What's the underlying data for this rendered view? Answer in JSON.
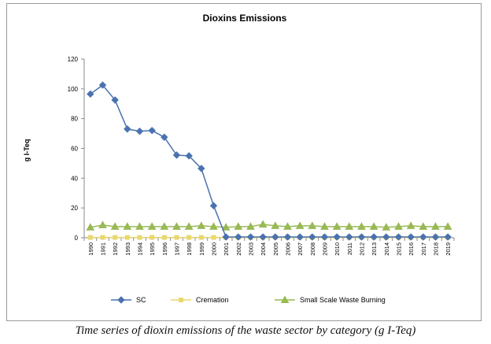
{
  "chart_data": {
    "type": "line",
    "title": "Dioxins Emissions",
    "xlabel": "",
    "ylabel": "g I-Teq",
    "ylim": [
      0,
      120
    ],
    "yticks": [
      0,
      20,
      40,
      60,
      80,
      100,
      120
    ],
    "grid": false,
    "legend": "bottom",
    "categories": [
      "1990",
      "1991",
      "1992",
      "1993",
      "1994",
      "1995",
      "1996",
      "1997",
      "1998",
      "1999",
      "2000",
      "2001",
      "2002",
      "2003",
      "2004",
      "2005",
      "2006",
      "2007",
      "2008",
      "2009",
      "2010",
      "2011",
      "2012",
      "2013",
      "2014",
      "2015",
      "2016",
      "2017",
      "2018",
      "2019"
    ],
    "series": [
      {
        "name": "SC",
        "color": "#4a72b0",
        "marker": "diamond",
        "values": [
          96.5,
          102.5,
          92.5,
          73,
          71.5,
          72,
          67.5,
          55.5,
          55,
          46.5,
          21.5,
          0.5,
          0.5,
          0.5,
          0.5,
          0.5,
          0.5,
          0.5,
          0.5,
          0.5,
          0.5,
          0.5,
          0.5,
          0.5,
          0.5,
          0.5,
          0.5,
          0.5,
          0.5,
          0.5
        ]
      },
      {
        "name": "Cremation",
        "color": "#e8d870",
        "marker": "square",
        "values": [
          0.2,
          0.2,
          0.2,
          0.2,
          0.2,
          0.2,
          0.2,
          0.2,
          0.2,
          0.2,
          0.2,
          0.2,
          0.2,
          0.2,
          0.2,
          0.2,
          0.2,
          0.2,
          0.2,
          0.2,
          0.2,
          0.2,
          0.2,
          0.2,
          0.2,
          0.2,
          0.2,
          0.2,
          0.2,
          0.2
        ]
      },
      {
        "name": "Small Scale Waste Burning",
        "color": "#98b954",
        "marker": "triangle",
        "values": [
          7,
          8.5,
          7.5,
          7.5,
          7.5,
          7.5,
          7.5,
          7.5,
          7.5,
          8,
          7.5,
          7,
          7.5,
          7.5,
          9,
          8,
          7.5,
          8,
          8,
          7.5,
          7.5,
          7.5,
          7.5,
          7.5,
          7,
          7.5,
          8,
          7.5,
          7.5,
          7.5
        ]
      }
    ]
  },
  "caption": "Time series of dioxin emissions of the waste sector by category (g I-Teq)"
}
